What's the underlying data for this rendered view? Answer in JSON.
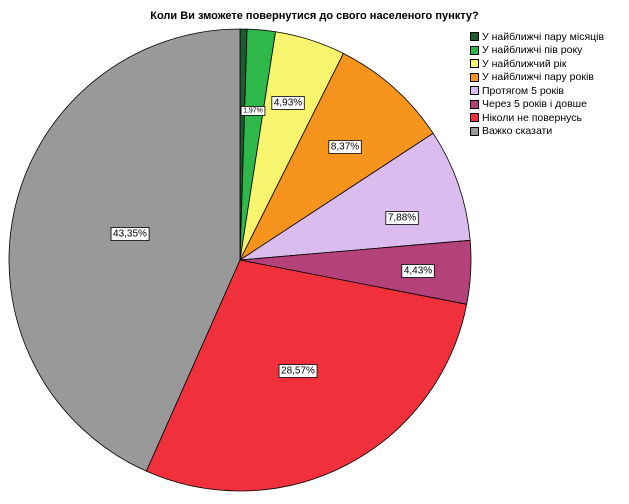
{
  "chart_data": {
    "type": "pie",
    "title": "Коли Ви зможете повернутися до свого населеного пункту?",
    "legend_position": "top-right",
    "slices": [
      {
        "label": "У найближчі пару місяців",
        "value": 0.49,
        "color": "#1e5b32",
        "data_label": ""
      },
      {
        "label": "У найближчі пів року",
        "value": 1.97,
        "color": "#2eb84a",
        "data_label": "1,97%"
      },
      {
        "label": "У найближчий рік",
        "value": 4.93,
        "color": "#f7f56e",
        "data_label": "4,93%"
      },
      {
        "label": "У найближчі пару років",
        "value": 8.37,
        "color": "#f7941d",
        "data_label": "8,37%"
      },
      {
        "label": "Протягом 5 років",
        "value": 7.88,
        "color": "#dbbcee",
        "data_label": "7,88%"
      },
      {
        "label": "Через 5 років і довше",
        "value": 4.43,
        "color": "#b5417a",
        "data_label": "4,43%"
      },
      {
        "label": "Ніколи не повернусь",
        "value": 28.57,
        "color": "#f0303a",
        "data_label": "28,57%"
      },
      {
        "label": "Важко сказати",
        "value": 43.35,
        "color": "#999999",
        "data_label": "43,35%"
      }
    ]
  }
}
